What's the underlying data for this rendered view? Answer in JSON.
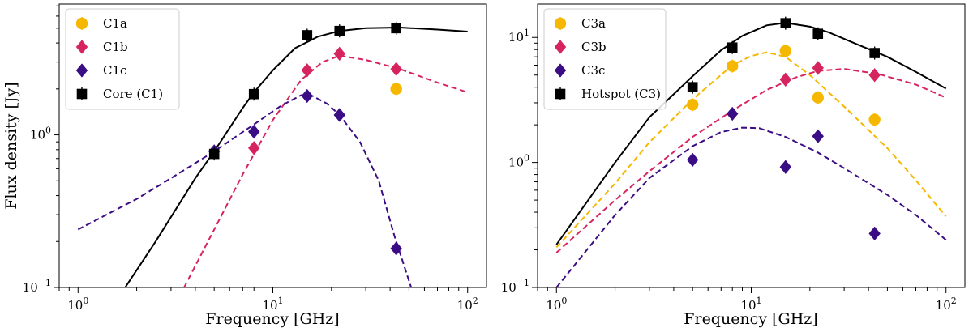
{
  "chart_data": [
    {
      "type": "scatter",
      "xscale": "log",
      "yscale": "log",
      "xlim": [
        0.8,
        125
      ],
      "ylim": [
        0.1,
        7.2
      ],
      "xlabel": "Frequency [GHz]",
      "ylabel": "Flux density [Jy]",
      "xticks": [
        {
          "value": 1,
          "base": "10",
          "exp": "0"
        },
        {
          "value": 10,
          "base": "10",
          "exp": "1"
        },
        {
          "value": 100,
          "base": "10",
          "exp": "2"
        }
      ],
      "yticks": [
        {
          "value": 0.1,
          "base": "10",
          "exp": "−1"
        },
        {
          "value": 1,
          "base": "10",
          "exp": "0"
        }
      ],
      "legend_position": "upper-left",
      "series": [
        {
          "name": "C1a",
          "color": "#f5b700",
          "marker": "circle",
          "points": [
            [
              43,
              2.0
            ]
          ],
          "fit": null
        },
        {
          "name": "C1b",
          "color": "#d6245f",
          "marker": "diamond",
          "points": [
            [
              8,
              0.82
            ],
            [
              15,
              2.65
            ],
            [
              22,
              3.4
            ],
            [
              43,
              2.7
            ]
          ],
          "fit": {
            "style": "dashed",
            "points": [
              [
                3.5,
                0.1
              ],
              [
                5,
                0.24
              ],
              [
                7,
                0.55
              ],
              [
                10,
                1.25
              ],
              [
                14,
                2.3
              ],
              [
                18,
                3.0
              ],
              [
                22,
                3.3
              ],
              [
                30,
                3.1
              ],
              [
                45,
                2.7
              ],
              [
                70,
                2.2
              ],
              [
                100,
                1.9
              ]
            ]
          }
        },
        {
          "name": "C1c",
          "color": "#3b0d84",
          "marker": "diamond",
          "points": [
            [
              5,
              0.78
            ],
            [
              8,
              1.05
            ],
            [
              15,
              1.8
            ],
            [
              22,
              1.35
            ],
            [
              43,
              0.18
            ]
          ],
          "fit": {
            "style": "dashed",
            "points": [
              [
                1,
                0.24
              ],
              [
                2,
                0.38
              ],
              [
                3,
                0.52
              ],
              [
                5,
                0.78
              ],
              [
                8,
                1.17
              ],
              [
                11,
                1.55
              ],
              [
                14,
                1.82
              ],
              [
                16,
                1.8
              ],
              [
                19,
                1.6
              ],
              [
                22,
                1.35
              ],
              [
                28,
                0.9
              ],
              [
                35,
                0.5
              ],
              [
                42,
                0.22
              ],
              [
                48,
                0.13
              ],
              [
                52,
                0.095
              ]
            ]
          }
        },
        {
          "name": "Core (C1)",
          "color": "#000000",
          "marker": "square",
          "points": [
            [
              5,
              0.75
            ],
            [
              8,
              1.85
            ],
            [
              15,
              4.5
            ],
            [
              22,
              4.8
            ],
            [
              43,
              5.0
            ]
          ],
          "fit": {
            "style": "solid",
            "points": [
              [
                1.7,
                0.095
              ],
              [
                2.5,
                0.2
              ],
              [
                4,
                0.52
              ],
              [
                5,
                0.78
              ],
              [
                7,
                1.5
              ],
              [
                8,
                1.9
              ],
              [
                10,
                2.65
              ],
              [
                13,
                3.7
              ],
              [
                17,
                4.4
              ],
              [
                22,
                4.8
              ],
              [
                30,
                5.0
              ],
              [
                45,
                5.05
              ],
              [
                70,
                4.9
              ],
              [
                100,
                4.75
              ]
            ]
          }
        }
      ]
    },
    {
      "type": "scatter",
      "xscale": "log",
      "yscale": "log",
      "xlim": [
        0.8,
        125
      ],
      "ylim": [
        0.1,
        18.5
      ],
      "xlabel": "Frequency [GHz]",
      "ylabel": "",
      "xticks": [
        {
          "value": 1,
          "base": "10",
          "exp": "0"
        },
        {
          "value": 10,
          "base": "10",
          "exp": "1"
        },
        {
          "value": 100,
          "base": "10",
          "exp": "2"
        }
      ],
      "yticks": [
        {
          "value": 0.1,
          "base": "10",
          "exp": "−1"
        },
        {
          "value": 1,
          "base": "10",
          "exp": "0"
        },
        {
          "value": 10,
          "base": "10",
          "exp": "1"
        }
      ],
      "legend_position": "upper-left",
      "series": [
        {
          "name": "C3a",
          "color": "#f5b700",
          "marker": "circle",
          "points": [
            [
              5,
              2.9
            ],
            [
              8,
              5.9
            ],
            [
              15,
              7.8
            ],
            [
              22,
              3.3
            ],
            [
              43,
              2.2
            ]
          ],
          "fit": {
            "style": "dashed",
            "points": [
              [
                1,
                0.21
              ],
              [
                2,
                0.68
              ],
              [
                3,
                1.45
              ],
              [
                5,
                3.2
              ],
              [
                8,
                6.0
              ],
              [
                10,
                7.1
              ],
              [
                12,
                7.6
              ],
              [
                15,
                7.0
              ],
              [
                20,
                5.0
              ],
              [
                30,
                2.8
              ],
              [
                50,
                1.3
              ],
              [
                70,
                0.72
              ],
              [
                100,
                0.37
              ]
            ]
          }
        },
        {
          "name": "C3b",
          "color": "#d6245f",
          "marker": "diamond",
          "points": [
            [
              15,
              4.6
            ],
            [
              22,
              5.7
            ],
            [
              43,
              5.0
            ]
          ],
          "fit": {
            "style": "dashed",
            "points": [
              [
                1,
                0.19
              ],
              [
                2,
                0.5
              ],
              [
                3,
                0.85
              ],
              [
                5,
                1.6
              ],
              [
                8,
                2.6
              ],
              [
                12,
                3.8
              ],
              [
                17,
                4.8
              ],
              [
                22,
                5.4
              ],
              [
                30,
                5.6
              ],
              [
                45,
                5.1
              ],
              [
                70,
                4.2
              ],
              [
                100,
                3.3
              ]
            ]
          }
        },
        {
          "name": "C3c",
          "color": "#3b0d84",
          "marker": "diamond",
          "points": [
            [
              5,
              1.05
            ],
            [
              8,
              2.45
            ],
            [
              15,
              0.92
            ],
            [
              22,
              1.62
            ],
            [
              43,
              0.27
            ]
          ],
          "fit": {
            "style": "dashed",
            "points": [
              [
                1,
                0.1
              ],
              [
                2,
                0.38
              ],
              [
                3,
                0.75
              ],
              [
                5,
                1.35
              ],
              [
                7,
                1.75
              ],
              [
                9,
                1.9
              ],
              [
                11,
                1.88
              ],
              [
                15,
                1.6
              ],
              [
                22,
                1.2
              ],
              [
                30,
                0.9
              ],
              [
                50,
                0.55
              ],
              [
                70,
                0.38
              ],
              [
                100,
                0.24
              ]
            ]
          }
        },
        {
          "name": "Hotspot (C3)",
          "color": "#000000",
          "marker": "square",
          "points": [
            [
              5,
              4.0
            ],
            [
              8,
              8.3
            ],
            [
              15,
              13.0
            ],
            [
              22,
              10.7
            ],
            [
              43,
              7.5
            ]
          ],
          "fit": {
            "style": "solid",
            "points": [
              [
                1,
                0.22
              ],
              [
                2,
                1.0
              ],
              [
                3,
                2.3
              ],
              [
                5,
                4.9
              ],
              [
                7,
                7.9
              ],
              [
                9,
                10.3
              ],
              [
                12,
                12.5
              ],
              [
                15,
                13.1
              ],
              [
                20,
                12.2
              ],
              [
                25,
                11.0
              ],
              [
                35,
                8.8
              ],
              [
                50,
                7.0
              ],
              [
                70,
                5.3
              ],
              [
                100,
                3.9
              ]
            ]
          }
        }
      ]
    }
  ]
}
